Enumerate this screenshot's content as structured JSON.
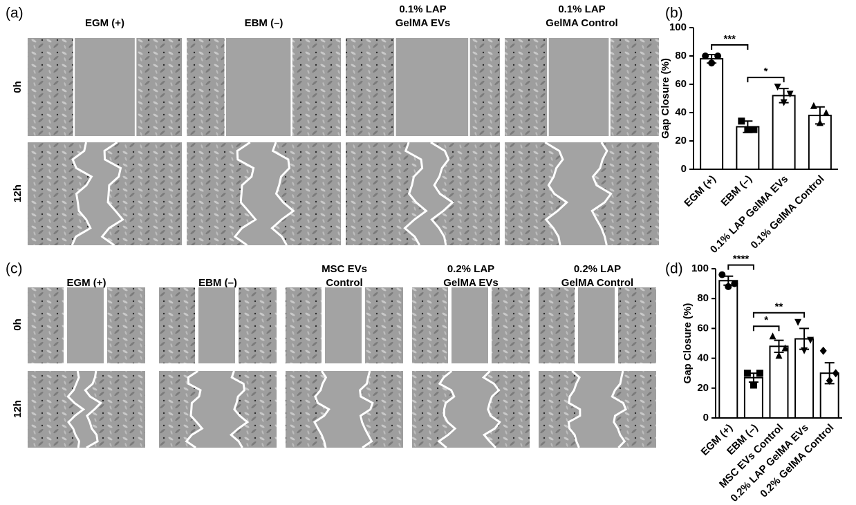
{
  "panel_labels": [
    "(a)",
    "(b)",
    "(c)",
    "(d)"
  ],
  "panel_a": {
    "columns": [
      [
        "EGM (+)"
      ],
      [
        "EBM (–)"
      ],
      [
        "0.1% LAP",
        "GelMA EVs"
      ],
      [
        "0.1% LAP",
        "GelMA Control"
      ]
    ],
    "rows": [
      "0h",
      "12h"
    ]
  },
  "panel_c": {
    "columns": [
      [
        "EGM (+)"
      ],
      [
        "EBM (–)"
      ],
      [
        "MSC EVs",
        "Control"
      ],
      [
        "0.2% LAP",
        "GelMA EVs"
      ],
      [
        "0.2% LAP",
        "GelMA Control"
      ]
    ],
    "rows": [
      "0h",
      "12h"
    ]
  },
  "chart_data": [
    {
      "type": "bar",
      "ylabel": "Gap Closure (%)",
      "categories": [
        "EGM (+)",
        "EBM (–)",
        "0.1% LAP GelMA EVs",
        "0.1% GelMA Control"
      ],
      "values": [
        78,
        30,
        52,
        38
      ],
      "errors": [
        3,
        4,
        5,
        6
      ],
      "points": [
        [
          80,
          80,
          75
        ],
        [
          34,
          28,
          28
        ],
        [
          58,
          53,
          47
        ],
        [
          45,
          40,
          33
        ]
      ],
      "markers": [
        "circle",
        "square",
        "triangle-down",
        "triangle-up"
      ],
      "color": "#ffffff",
      "ylim": [
        0,
        100
      ],
      "yticks": [
        0,
        20,
        40,
        60,
        80,
        100
      ],
      "significance": [
        {
          "label": "***",
          "between": [
            "EGM (+)",
            "EBM (–)"
          ]
        },
        {
          "label": "*",
          "between": [
            "EBM (–)",
            "0.1% LAP GelMA EVs"
          ]
        }
      ]
    },
    {
      "type": "bar",
      "ylabel": "Gap Closure (%)",
      "categories": [
        "EGM (+)",
        "EBM (–)",
        "MSC EVs Control",
        "0.2% LAP GelMA EVs",
        "0.2% GelMA Control"
      ],
      "values": [
        92,
        27,
        48,
        53,
        30
      ],
      "errors": [
        3,
        3,
        4,
        7,
        7
      ],
      "points": [
        [
          96,
          90,
          88
        ],
        [
          30,
          30,
          22
        ],
        [
          55,
          47,
          42
        ],
        [
          64,
          52,
          45
        ],
        [
          45,
          30,
          25
        ]
      ],
      "markers": [
        "circle",
        "square",
        "triangle-up",
        "triangle-down",
        "diamond"
      ],
      "color": "#ffffff",
      "ylim": [
        0,
        100
      ],
      "yticks": [
        0,
        20,
        40,
        60,
        80,
        100
      ],
      "significance": [
        {
          "label": "****",
          "between": [
            "EGM (+)",
            "EBM (–)"
          ]
        },
        {
          "label": "*",
          "between": [
            "EBM (–)",
            "MSC EVs Control"
          ]
        },
        {
          "label": "**",
          "between": [
            "EBM (–)",
            "0.2% LAP GelMA EVs"
          ]
        }
      ]
    }
  ]
}
